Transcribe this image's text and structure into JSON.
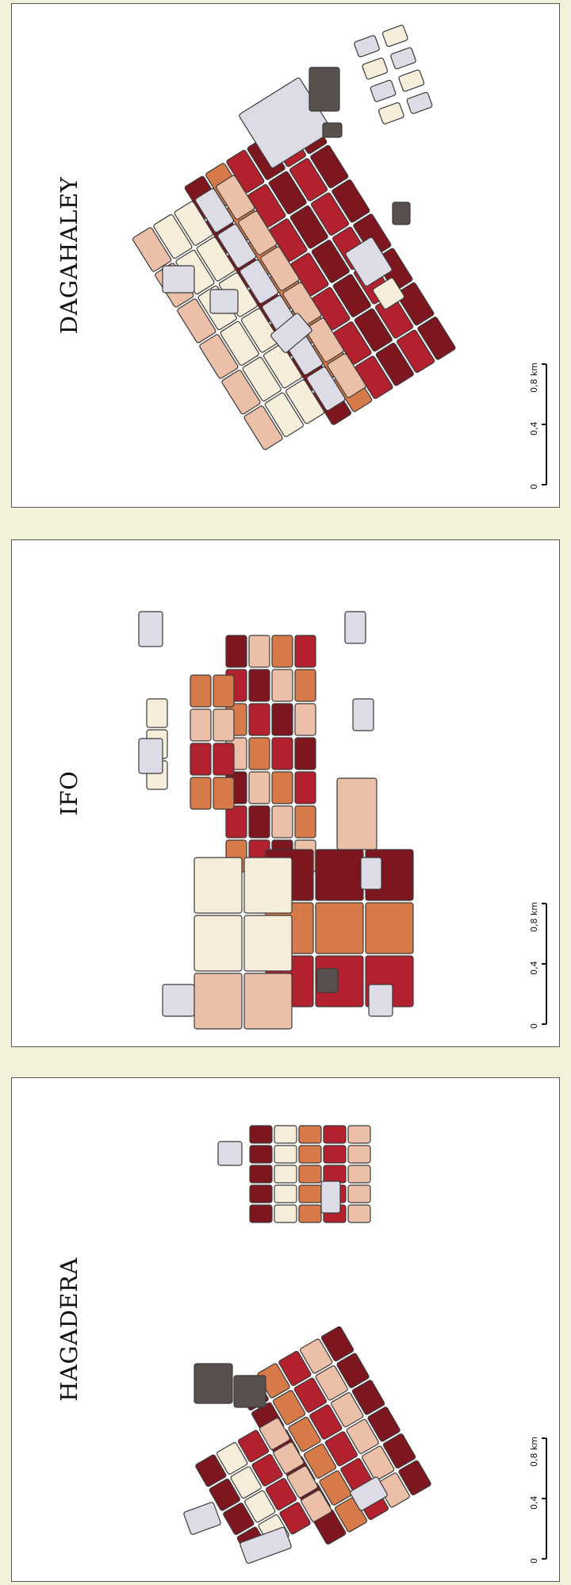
{
  "panels": [
    {
      "title": "DAGAHALEY"
    },
    {
      "title": "IFO"
    },
    {
      "title": "HAGADERA"
    }
  ],
  "scale_bar": {
    "labels": [
      "0",
      "0,4",
      "0,8 km"
    ]
  },
  "palette": {
    "c1": "#7e1620",
    "c2": "#b3212e",
    "c3": "#d67a4a",
    "c4": "#ecc0a8",
    "c5": "#f6eedb",
    "c6": "#dcdbe6",
    "c7": "#57504c"
  }
}
